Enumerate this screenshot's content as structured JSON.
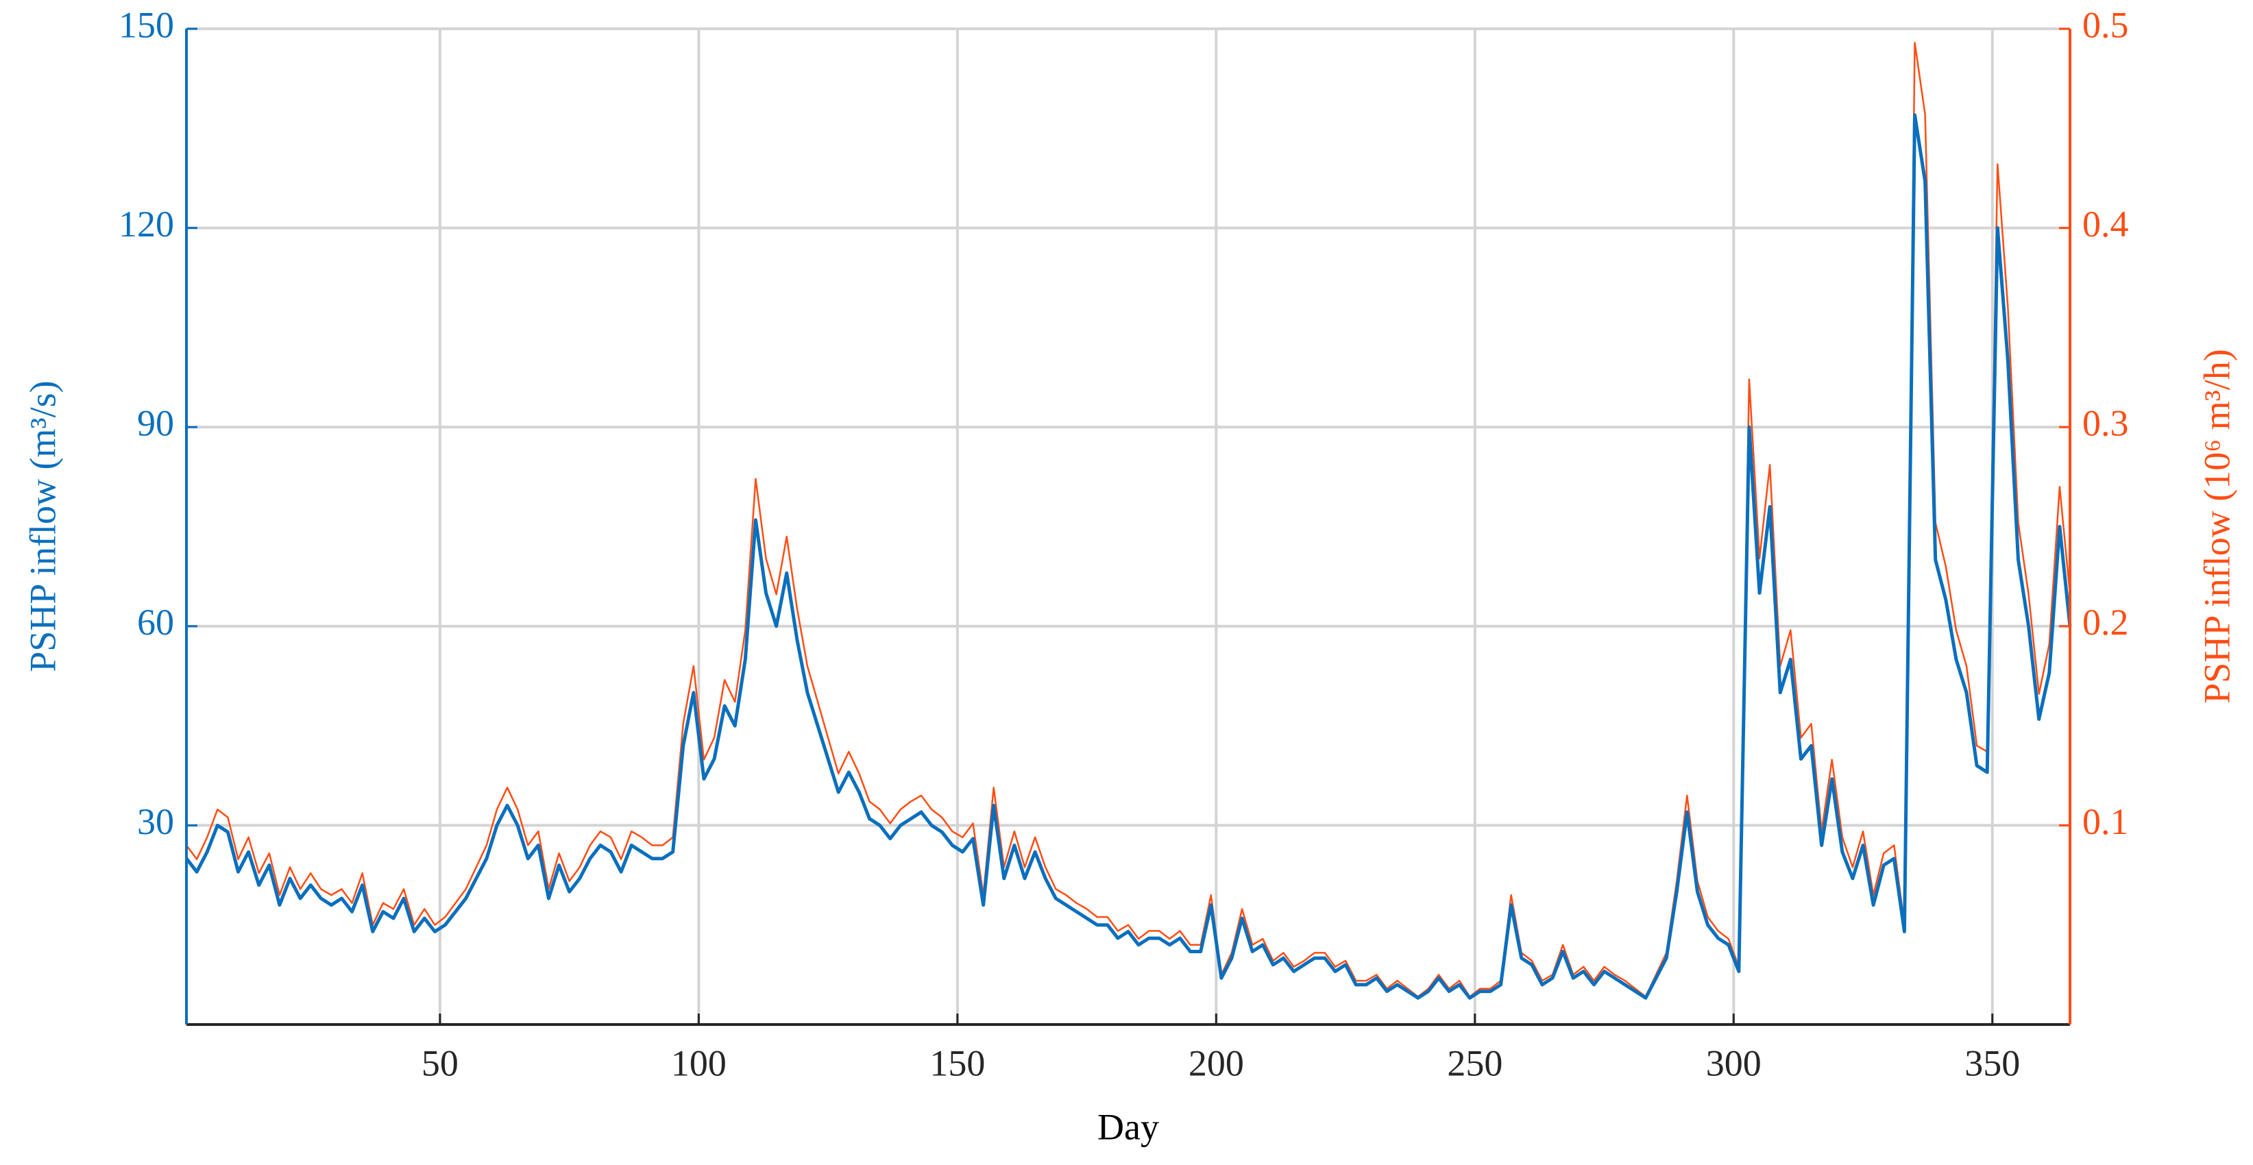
{
  "chart_data": {
    "type": "line",
    "xlabel": "Day",
    "ylabel": "PSHP inflow (m³/s)",
    "y2label": "PSHP inflow (10⁶ m³/h)",
    "xlim": [
      1,
      365
    ],
    "xticks": [
      50,
      100,
      150,
      200,
      250,
      300,
      350
    ],
    "ylim": [
      0,
      150
    ],
    "yticks": [
      30,
      60,
      90,
      120,
      150
    ],
    "y2lim": [
      0,
      0.5
    ],
    "y2ticks": [
      0.1,
      0.2,
      0.3,
      0.4,
      0.5
    ],
    "grid": true,
    "x": [
      1,
      3,
      5,
      7,
      9,
      11,
      13,
      15,
      17,
      19,
      21,
      23,
      25,
      27,
      29,
      31,
      33,
      35,
      37,
      39,
      41,
      43,
      45,
      47,
      49,
      51,
      53,
      55,
      57,
      59,
      61,
      63,
      65,
      67,
      69,
      71,
      73,
      75,
      77,
      79,
      81,
      83,
      85,
      87,
      89,
      91,
      93,
      95,
      97,
      99,
      101,
      103,
      105,
      107,
      109,
      111,
      113,
      115,
      117,
      119,
      121,
      123,
      125,
      127,
      129,
      131,
      133,
      135,
      137,
      139,
      141,
      143,
      145,
      147,
      149,
      151,
      153,
      155,
      157,
      159,
      161,
      163,
      165,
      167,
      169,
      171,
      173,
      175,
      177,
      179,
      181,
      183,
      185,
      187,
      189,
      191,
      193,
      195,
      197,
      199,
      201,
      203,
      205,
      207,
      209,
      211,
      213,
      215,
      217,
      219,
      221,
      223,
      225,
      227,
      229,
      231,
      233,
      235,
      237,
      239,
      241,
      243,
      245,
      247,
      249,
      251,
      253,
      255,
      257,
      259,
      261,
      263,
      265,
      267,
      269,
      271,
      273,
      275,
      277,
      279,
      281,
      283,
      285,
      287,
      289,
      291,
      293,
      295,
      297,
      299,
      301,
      303,
      305,
      307,
      309,
      311,
      313,
      315,
      317,
      319,
      321,
      323,
      325,
      327,
      329,
      331,
      333,
      335,
      337,
      339,
      341,
      343,
      345,
      347,
      349,
      351,
      353,
      355,
      357,
      359,
      361,
      363,
      365
    ],
    "series": [
      {
        "axis": "y2",
        "color": "#ff4d14",
        "values": [
          0.09,
          0.083,
          0.094,
          0.108,
          0.104,
          0.083,
          0.094,
          0.076,
          0.086,
          0.065,
          0.079,
          0.068,
          0.076,
          0.068,
          0.065,
          0.068,
          0.061,
          0.076,
          0.05,
          0.061,
          0.058,
          0.068,
          0.05,
          0.058,
          0.05,
          0.054,
          0.061,
          0.068,
          0.079,
          0.09,
          0.108,
          0.119,
          0.108,
          0.09,
          0.097,
          0.068,
          0.086,
          0.072,
          0.079,
          0.09,
          0.097,
          0.094,
          0.083,
          0.097,
          0.094,
          0.09,
          0.09,
          0.094,
          0.151,
          0.18,
          0.133,
          0.144,
          0.173,
          0.162,
          0.198,
          0.274,
          0.234,
          0.216,
          0.245,
          0.209,
          0.18,
          0.162,
          0.144,
          0.126,
          0.137,
          0.126,
          0.112,
          0.108,
          0.101,
          0.108,
          0.112,
          0.115,
          0.108,
          0.104,
          0.097,
          0.094,
          0.101,
          0.065,
          0.119,
          0.079,
          0.097,
          0.079,
          0.094,
          0.079,
          0.068,
          0.065,
          0.061,
          0.058,
          0.054,
          0.054,
          0.047,
          0.05,
          0.043,
          0.047,
          0.047,
          0.043,
          0.047,
          0.04,
          0.04,
          0.065,
          0.025,
          0.036,
          0.058,
          0.04,
          0.043,
          0.032,
          0.036,
          0.029,
          0.032,
          0.036,
          0.036,
          0.029,
          0.032,
          0.022,
          0.022,
          0.025,
          0.018,
          0.022,
          0.018,
          0.014,
          0.018,
          0.025,
          0.018,
          0.022,
          0.014,
          0.018,
          0.018,
          0.022,
          0.065,
          0.036,
          0.032,
          0.022,
          0.025,
          0.04,
          0.025,
          0.029,
          0.022,
          0.029,
          0.025,
          0.022,
          0.018,
          0.014,
          0.025,
          0.036,
          0.072,
          0.115,
          0.072,
          0.054,
          0.047,
          0.043,
          0.029,
          0.324,
          0.234,
          0.281,
          0.18,
          0.198,
          0.144,
          0.151,
          0.097,
          0.133,
          0.094,
          0.079,
          0.097,
          0.065,
          0.086,
          0.09,
          0.05,
          0.493,
          0.457,
          0.252,
          0.23,
          0.198,
          0.18,
          0.14,
          0.137,
          0.432,
          0.36,
          0.252,
          0.216,
          0.166,
          0.191,
          0.27,
          0.216
        ]
      },
      {
        "axis": "y",
        "color": "#0a6fbd",
        "values": [
          25,
          23,
          26,
          30,
          29,
          23,
          26,
          21,
          24,
          18,
          22,
          19,
          21,
          19,
          18,
          19,
          17,
          21,
          14,
          17,
          16,
          19,
          14,
          16,
          14,
          15,
          17,
          19,
          22,
          25,
          30,
          33,
          30,
          25,
          27,
          19,
          24,
          20,
          22,
          25,
          27,
          26,
          23,
          27,
          26,
          25,
          25,
          26,
          42,
          50,
          37,
          40,
          48,
          45,
          55,
          76,
          65,
          60,
          68,
          58,
          50,
          45,
          40,
          35,
          38,
          35,
          31,
          30,
          28,
          30,
          31,
          32,
          30,
          29,
          27,
          26,
          28,
          18,
          33,
          22,
          27,
          22,
          26,
          22,
          19,
          18,
          17,
          16,
          15,
          15,
          13,
          14,
          12,
          13,
          13,
          12,
          13,
          11,
          11,
          18,
          7,
          10,
          16,
          11,
          12,
          9,
          10,
          8,
          9,
          10,
          10,
          8,
          9,
          6,
          6,
          7,
          5,
          6,
          5,
          4,
          5,
          7,
          5,
          6,
          4,
          5,
          5,
          6,
          18,
          10,
          9,
          6,
          7,
          11,
          7,
          8,
          6,
          8,
          7,
          6,
          5,
          4,
          7,
          10,
          20,
          32,
          20,
          15,
          13,
          12,
          8,
          90,
          65,
          78,
          50,
          55,
          40,
          42,
          27,
          37,
          26,
          22,
          27,
          18,
          24,
          25,
          14,
          137,
          127,
          70,
          64,
          55,
          50,
          39,
          38,
          120,
          100,
          70,
          60,
          46,
          53,
          75,
          60
        ]
      }
    ]
  }
}
